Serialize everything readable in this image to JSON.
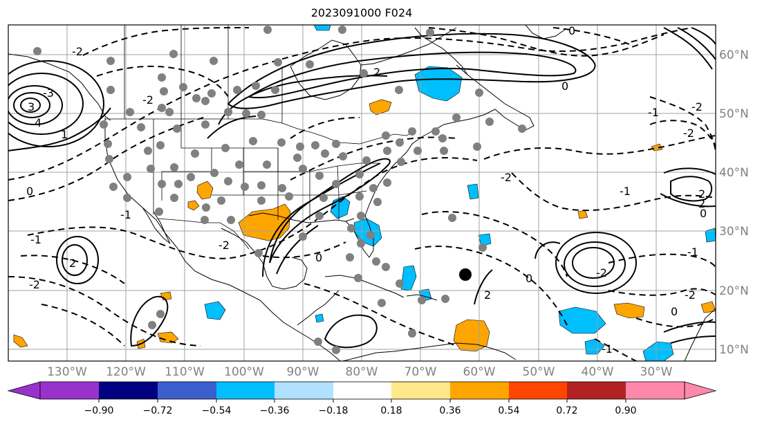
{
  "title": "2023091000 F024",
  "map": {
    "lon_labels": [
      "130°W",
      "120°W",
      "110°W",
      "100°W",
      "90°W",
      "80°W",
      "70°W",
      "60°W",
      "50°W",
      "40°W",
      "30°W"
    ],
    "lat_labels": [
      "60°N",
      "50°N",
      "40°N",
      "30°N",
      "20°N",
      "10°N"
    ],
    "contour_labels": [
      "0",
      "-1",
      "-2",
      "-3",
      "3",
      "4",
      "1",
      "2",
      "-1",
      "-2",
      "0",
      "2",
      "-2",
      "0",
      "-1",
      "-2",
      "-1",
      "-2",
      "2",
      "0",
      "-2",
      "0",
      "-1",
      "2",
      "-2",
      "-2",
      "-1",
      "0",
      "-2",
      "0",
      "2"
    ],
    "colors": {
      "positive_shading": "#ffa500",
      "negative_shading": "#00bfff",
      "contour": "#000000",
      "coast": "#000000",
      "grid": "#808080",
      "stations": "#808080"
    }
  },
  "colorbar": {
    "ticks": [
      "−0.90",
      "−0.72",
      "−0.54",
      "−0.36",
      "−0.18",
      "0.18",
      "0.36",
      "0.54",
      "0.72",
      "0.90"
    ],
    "colors": [
      "#9932cc",
      "#000080",
      "#3a5fcd",
      "#00bfff",
      "#b0e2ff",
      "#ffffff",
      "#ffe88a",
      "#ffa500",
      "#ff4500",
      "#b22222",
      "#ff88aa"
    ]
  }
}
